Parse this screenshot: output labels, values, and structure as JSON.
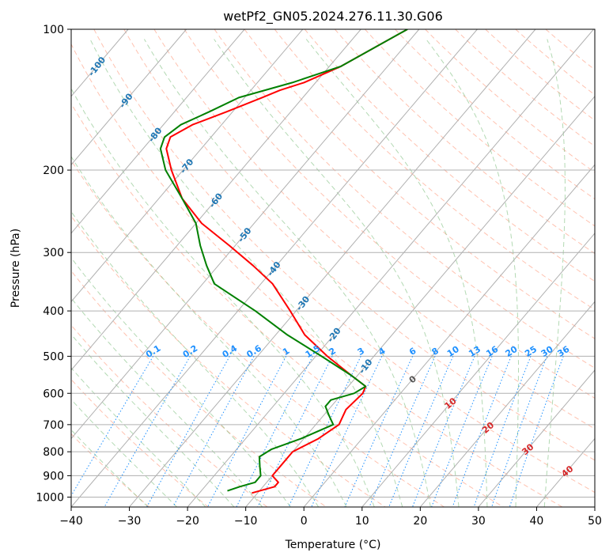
{
  "chart_data": {
    "type": "skew-t",
    "title": "wetPf2_GN05.2024.276.11.30.G06",
    "xlabel": "Temperature (°C)",
    "ylabel": "Pressure (hPa)",
    "xlim": [
      -40,
      50
    ],
    "ylim": [
      1050,
      100
    ],
    "x_ticks": [
      "−40",
      "−30",
      "−20",
      "−10",
      "0",
      "10",
      "20",
      "30",
      "40",
      "50"
    ],
    "y_ticks": [
      {
        "p": 100,
        "label": "100"
      },
      {
        "p": 200,
        "label": "200"
      },
      {
        "p": 300,
        "label": "300"
      },
      {
        "p": 400,
        "label": "400"
      },
      {
        "p": 500,
        "label": "500"
      },
      {
        "p": 600,
        "label": "600"
      },
      {
        "p": 700,
        "label": "700"
      },
      {
        "p": 800,
        "label": "800"
      },
      {
        "p": 900,
        "label": "900"
      },
      {
        "p": 1000,
        "label": "1000"
      }
    ],
    "colors": {
      "temperature": "#ff0000",
      "dewpoint": "#008000",
      "isotherm_labels": "#1f77b4",
      "mixing_ratio": "#1e90ff",
      "dry_adiabat": "#ff9070",
      "moist_adiabat": "#80c080",
      "moist_labels": "#d62728",
      "grid": "#b0b0b0"
    },
    "isotherm_labels": [
      {
        "t": -100,
        "label": "-100",
        "p": 120
      },
      {
        "t": -90,
        "label": "-90",
        "p": 142
      },
      {
        "t": -80,
        "label": "-80",
        "p": 168
      },
      {
        "t": -70,
        "label": "-70",
        "p": 196
      },
      {
        "t": -60,
        "label": "-60",
        "p": 232
      },
      {
        "t": -50,
        "label": "-50",
        "p": 275
      },
      {
        "t": -40,
        "label": "-40",
        "p": 325
      },
      {
        "t": -30,
        "label": "-30",
        "p": 385
      },
      {
        "t": -20,
        "label": "-20",
        "p": 450
      },
      {
        "t": -10,
        "label": "-10",
        "p": 525
      }
    ],
    "mixing_ratio_labels": [
      "0.1",
      "0.2",
      "0.4",
      "0.6",
      "1",
      "1.5",
      "2",
      "3",
      "4",
      "6",
      "8",
      "10",
      "13",
      "16",
      "20",
      "25",
      "30",
      "36"
    ],
    "moist_adiabat_labels": [
      {
        "t": 0,
        "label": "0",
        "p": 560
      },
      {
        "t": 10,
        "label": "10",
        "p": 630
      },
      {
        "t": 20,
        "label": "20",
        "p": 710
      },
      {
        "t": 30,
        "label": "30",
        "p": 790
      },
      {
        "t": 40,
        "label": "40",
        "p": 880
      }
    ],
    "series": [
      {
        "points": [
          [
            100,
            -52
          ],
          [
            120,
            -58
          ],
          [
            130,
            -62
          ],
          [
            135,
            -65
          ],
          [
            140,
            -67
          ],
          [
            150,
            -71
          ],
          [
            160,
            -75
          ],
          [
            170,
            -77
          ],
          [
            180,
            -76
          ],
          [
            200,
            -72
          ],
          [
            230,
            -66
          ],
          [
            260,
            -59
          ],
          [
            290,
            -51
          ],
          [
            320,
            -44
          ],
          [
            350,
            -38
          ],
          [
            400,
            -31
          ],
          [
            450,
            -25
          ],
          [
            500,
            -18
          ],
          [
            550,
            -11
          ],
          [
            580,
            -7
          ],
          [
            600,
            -6.5
          ],
          [
            650,
            -7
          ],
          [
            700,
            -6
          ],
          [
            750,
            -7.5
          ],
          [
            800,
            -10
          ],
          [
            850,
            -10
          ],
          [
            900,
            -10
          ],
          [
            930,
            -8
          ],
          [
            950,
            -8
          ],
          [
            980,
            -11
          ]
        ]
      },
      {
        "points": [
          [
            100,
            -52
          ],
          [
            120,
            -58
          ],
          [
            130,
            -64
          ],
          [
            140,
            -71
          ],
          [
            150,
            -74
          ],
          [
            160,
            -77
          ],
          [
            170,
            -78
          ],
          [
            180,
            -77
          ],
          [
            200,
            -73
          ],
          [
            230,
            -66
          ],
          [
            260,
            -60
          ],
          [
            290,
            -56
          ],
          [
            320,
            -52
          ],
          [
            350,
            -48
          ],
          [
            400,
            -37
          ],
          [
            450,
            -28
          ],
          [
            500,
            -19
          ],
          [
            550,
            -11
          ],
          [
            580,
            -7
          ],
          [
            600,
            -8
          ],
          [
            620,
            -11
          ],
          [
            640,
            -11
          ],
          [
            670,
            -9
          ],
          [
            700,
            -7
          ],
          [
            750,
            -10.5
          ],
          [
            790,
            -14
          ],
          [
            820,
            -15
          ],
          [
            860,
            -13.5
          ],
          [
            900,
            -12
          ],
          [
            930,
            -12
          ],
          [
            950,
            -14
          ],
          [
            970,
            -15.5
          ]
        ]
      }
    ]
  }
}
